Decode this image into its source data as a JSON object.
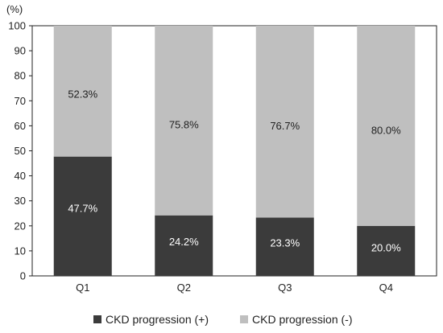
{
  "chart_data": {
    "type": "bar",
    "stacked": true,
    "categories": [
      "Q1",
      "Q2",
      "Q3",
      "Q4"
    ],
    "series": [
      {
        "name": "CKD progression (+)",
        "values": [
          47.7,
          24.2,
          23.3,
          20.0
        ],
        "labels": [
          "47.7%",
          "24.2%",
          "23.3%",
          "20.0%"
        ],
        "color": "#3b3b3b",
        "label_color": "#ffffff"
      },
      {
        "name": "CKD progression (-)",
        "values": [
          52.3,
          75.8,
          76.7,
          80.0
        ],
        "labels": [
          "52.3%",
          "75.8%",
          "76.7%",
          "80.0%"
        ],
        "color": "#bfbfbf",
        "label_color": "#222222"
      }
    ],
    "ylabel": "(%)",
    "ylim": [
      0,
      100
    ],
    "yticks": [
      "0",
      "10",
      "20",
      "30",
      "40",
      "50",
      "60",
      "70",
      "80",
      "90",
      "100"
    ],
    "grid": false,
    "legend_position": "bottom"
  }
}
